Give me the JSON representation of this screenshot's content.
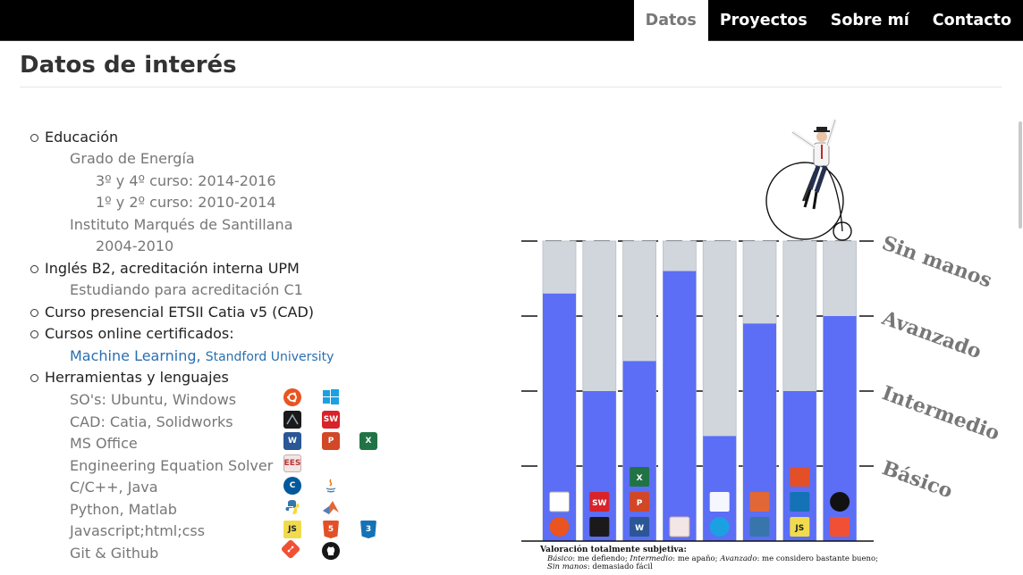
{
  "nav": {
    "items": [
      {
        "label": "Datos",
        "active": true
      },
      {
        "label": "Proyectos",
        "active": false
      },
      {
        "label": "Sobre mí",
        "active": false
      },
      {
        "label": "Contacto",
        "active": false
      }
    ]
  },
  "page": {
    "title": "Datos de interés"
  },
  "education": {
    "label": "Educación",
    "degree": "Grado de Energía",
    "years_a": "3º y 4º curso: 2014-2016",
    "years_b": "1º y 2º curso: 2010-2014",
    "school": "Instituto Marqués de Santillana",
    "school_years": "2004-2010"
  },
  "english": {
    "label": "Inglés B2, acreditación interna UPM",
    "note": "Estudiando para acreditación C1"
  },
  "catia_course": {
    "label": "Curso presencial ETSII Catia v5 (CAD)"
  },
  "online": {
    "label": "Cursos online certificados:",
    "course": "Machine Learning,",
    "provider": "Standford University"
  },
  "tools": {
    "label": "Herramientas y lenguajes",
    "rows": [
      {
        "label": "SO's: Ubuntu, Windows",
        "icons": [
          "ubuntu-icon",
          "windows-icon"
        ]
      },
      {
        "label": "CAD: Catia, Solidworks",
        "icons": [
          "catia-icon",
          "solidworks-icon"
        ]
      },
      {
        "label": "MS Office",
        "icons": [
          "word-icon",
          "powerpoint-icon",
          "excel-icon"
        ]
      },
      {
        "label": "Engineering Equation Solver",
        "icons": [
          "ees-icon"
        ]
      },
      {
        "label": "C/C++, Java",
        "icons": [
          "cpp-icon",
          "java-icon"
        ]
      },
      {
        "label": "Python, Matlab",
        "icons": [
          "python-icon",
          "matlab-icon"
        ]
      },
      {
        "label": "Javascript;html;css",
        "icons": [
          "javascript-icon",
          "html5-icon",
          "css3-icon"
        ]
      },
      {
        "label": "Git & Github",
        "icons": [
          "git-icon",
          "github-icon"
        ]
      }
    ]
  },
  "icon_text": {
    "ee": "EES",
    "js": "JS",
    "h5": "5",
    "c3": "3",
    "sw": "SW",
    "w": "W",
    "p": "P",
    "x": "X",
    "c": "C"
  },
  "colors": {
    "bar_fill": "#5b6ef5",
    "bar_track": "#d1d6dd",
    "level_text": "#777777",
    "nav_bg": "#000000",
    "link": "#2a6fb0"
  },
  "chart_data": {
    "type": "bar",
    "levels": [
      "Básico",
      "Intermedio",
      "Avanzado",
      "Sin manos"
    ],
    "ylim": [
      0,
      4
    ],
    "categories": [
      "SO's",
      "CAD",
      "MS Office",
      "EES",
      "C/C++, Java",
      "Python, Matlab",
      "Javascript;html;css",
      "Git & Github"
    ],
    "values": [
      3.3,
      2.0,
      2.4,
      3.6,
      1.4,
      2.9,
      2.0,
      3.0
    ],
    "note_title": "Valoración totalmente subjetiva:",
    "note_line1_a": "Básico",
    "note_line1_b": ": me defiendo; ",
    "note_line1_c": "Intermedio",
    "note_line1_d": ": me apaño; ",
    "note_line1_e": "Avanzado",
    "note_line1_f": ": me considero bastante bueno;",
    "note_line2_a": "Sin manos",
    "note_line2_b": ": demasiado fácil"
  }
}
